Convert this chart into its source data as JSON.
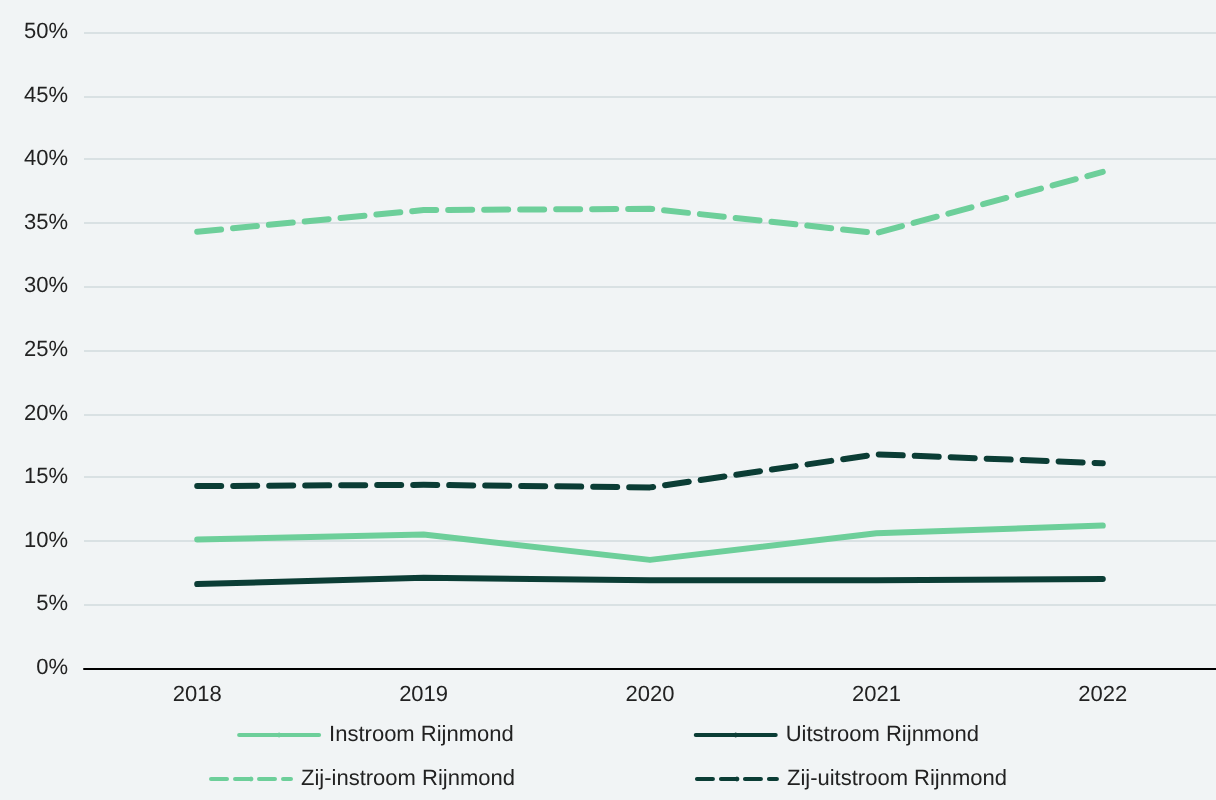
{
  "chart_data": {
    "type": "line",
    "categories": [
      "2018",
      "2019",
      "2020",
      "2021",
      "2022"
    ],
    "series": [
      {
        "name": "Instroom Rijnmond",
        "color": "#6dcf9a",
        "values": [
          10.1,
          10.5,
          8.5,
          10.6,
          11.2
        ],
        "line_style": "solid"
      },
      {
        "name": "Uitstroom Rijnmond",
        "color": "#0b3d35",
        "values": [
          6.6,
          7.1,
          6.9,
          6.9,
          7.0
        ],
        "line_style": "solid"
      },
      {
        "name": "Zij-instroom Rijnmond",
        "color": "#6dcf9a",
        "values": [
          34.3,
          36.0,
          36.1,
          34.2,
          39.0
        ],
        "line_style": "dashed"
      },
      {
        "name": "Zij-uitstroom Rijnmond",
        "color": "#0b3d35",
        "values": [
          14.3,
          14.4,
          14.2,
          16.8,
          16.1
        ],
        "line_style": "dashed"
      }
    ],
    "ylim": [
      0,
      50
    ],
    "yticks": [
      {
        "value": 0,
        "label": "0%"
      },
      {
        "value": 5,
        "label": "5%"
      },
      {
        "value": 10,
        "label": "10%"
      },
      {
        "value": 15,
        "label": "15%"
      },
      {
        "value": 20,
        "label": "20%"
      },
      {
        "value": 25,
        "label": "25%"
      },
      {
        "value": 30,
        "label": "30%"
      },
      {
        "value": 35,
        "label": "35%"
      },
      {
        "value": 40,
        "label": "40%"
      },
      {
        "value": 45,
        "label": "45%"
      },
      {
        "value": 50,
        "label": "50%"
      }
    ],
    "grid": "y",
    "legend": "bottom",
    "marker": "none"
  }
}
